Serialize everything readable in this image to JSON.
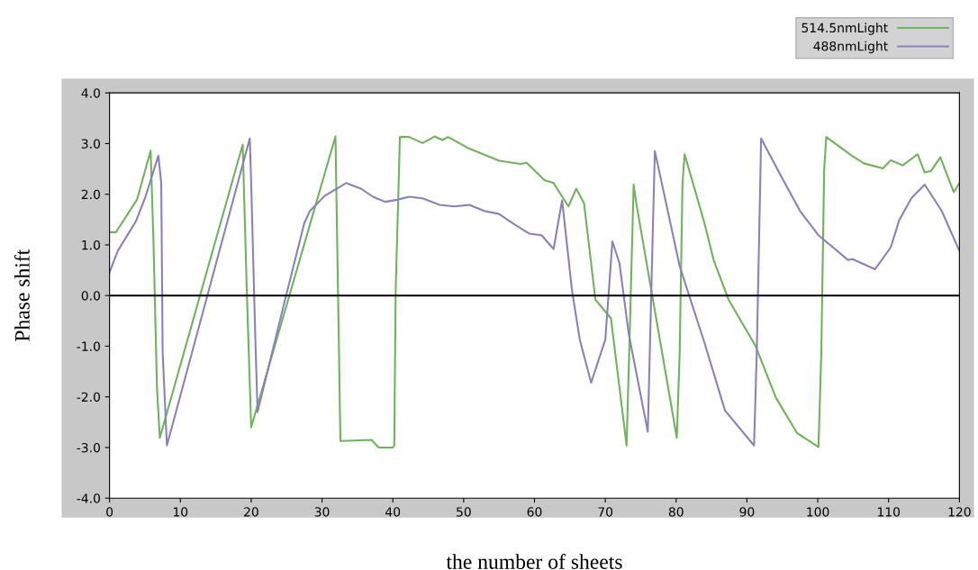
{
  "chart_data": {
    "type": "line",
    "xlabel": "the number of sheets",
    "ylabel": "Phase shift",
    "xlim": [
      0,
      120
    ],
    "xticks": [
      0,
      10,
      20,
      30,
      40,
      50,
      60,
      70,
      80,
      90,
      100,
      110,
      120
    ],
    "ylim": [
      -4,
      4
    ],
    "yticks": [
      {
        "value": -4,
        "label": "-4.0"
      },
      {
        "value": -3,
        "label": "-3.0"
      },
      {
        "value": -2,
        "label": "-2.0"
      },
      {
        "value": -1,
        "label": "-1.0"
      },
      {
        "value": 0,
        "label": "0.0"
      },
      {
        "value": 1,
        "label": "1.0"
      },
      {
        "value": 2,
        "label": "2.0"
      },
      {
        "value": 3,
        "label": "3.0"
      },
      {
        "value": 4,
        "label": "4.0"
      }
    ],
    "grid": false,
    "legend": "top right",
    "marker": "none",
    "line_style": "solid",
    "ref_lines": [
      {
        "axis": "y",
        "value": 0,
        "color": "#000000"
      }
    ],
    "series": [
      {
        "name": "514.5nmLight",
        "color": "#6fb35a",
        "x": [
          0,
          0.9,
          3.9,
          5.8,
          6.2,
          6.7,
          7.1,
          18.8,
          19.4,
          20.0,
          31.9,
          32.6,
          37,
          38,
          40,
          40.2,
          40.4,
          41.0,
          42.3,
          44.2,
          45.9,
          47,
          47.8,
          50.8,
          55,
          58,
          58.9,
          61.4,
          62.7,
          64.8,
          65.9,
          67,
          68.6,
          70.8,
          73,
          73.4,
          74,
          74.4,
          80.1,
          80.5,
          80.9,
          81.2,
          84,
          85.3,
          87.4,
          91.2,
          94.1,
          97.1,
          100.1,
          100.5,
          100.9,
          101.2,
          104.8,
          106.5,
          109.2,
          110.3,
          112,
          114.1,
          115.1,
          116,
          117.3,
          119.2,
          120
        ],
        "values": [
          1.25,
          1.25,
          1.9,
          2.86,
          1.07,
          -1.83,
          -2.81,
          2.98,
          0,
          -2.6,
          3.14,
          -2.87,
          -2.85,
          -3.0,
          -3.0,
          -2.96,
          0.1,
          3.13,
          3.13,
          3.01,
          3.14,
          3.07,
          3.13,
          2.9,
          2.66,
          2.6,
          2.62,
          2.28,
          2.22,
          1.76,
          2.11,
          1.82,
          -0.08,
          -0.45,
          -2.96,
          -1.0,
          2.19,
          1.8,
          -2.81,
          -1.12,
          2.22,
          2.79,
          1.43,
          0.7,
          -0.08,
          -0.99,
          -2.02,
          -2.72,
          -2.99,
          -1.12,
          2.49,
          3.13,
          2.76,
          2.61,
          2.51,
          2.67,
          2.57,
          2.79,
          2.43,
          2.46,
          2.73,
          2.04,
          2.22
        ]
      },
      {
        "name": "488nmLight",
        "color": "#8a80c0",
        "x": [
          0,
          1.2,
          3.7,
          5,
          6.9,
          7.3,
          7.5,
          8.1,
          19.8,
          20,
          20.6,
          20.9,
          24.9,
          27.5,
          28.3,
          30.4,
          33.4,
          35.5,
          37.2,
          38.9,
          40.6,
          42.3,
          44.2,
          46.6,
          48.7,
          50.8,
          52.9,
          55,
          57.2,
          59.3,
          61,
          62.7,
          63.9,
          65.3,
          66.4,
          68,
          70,
          71,
          72,
          73.3,
          76,
          76.8,
          77,
          80.5,
          84,
          86.9,
          91,
          91.4,
          92,
          95,
          97.5,
          100.1,
          104.3,
          104.9,
          108.1,
          110.3,
          111.5,
          113.2,
          115.1,
          117.5,
          120
        ],
        "values": [
          0.46,
          0.89,
          1.46,
          1.92,
          2.76,
          2.22,
          -1.12,
          -2.96,
          3.1,
          2.22,
          -0.93,
          -2.3,
          -0.02,
          1.43,
          1.67,
          1.97,
          2.22,
          2.11,
          1.95,
          1.85,
          1.89,
          1.95,
          1.92,
          1.79,
          1.76,
          1.79,
          1.67,
          1.61,
          1.4,
          1.22,
          1.19,
          0.92,
          1.88,
          0.1,
          -0.87,
          -1.72,
          -0.87,
          1.07,
          0.64,
          -0.75,
          -2.69,
          1.79,
          2.85,
          0.58,
          -0.93,
          -2.27,
          -2.96,
          -1.05,
          3.1,
          2.31,
          1.67,
          1.19,
          0.7,
          0.72,
          0.52,
          0.95,
          1.49,
          1.92,
          2.19,
          1.67,
          0.88
        ]
      }
    ]
  }
}
